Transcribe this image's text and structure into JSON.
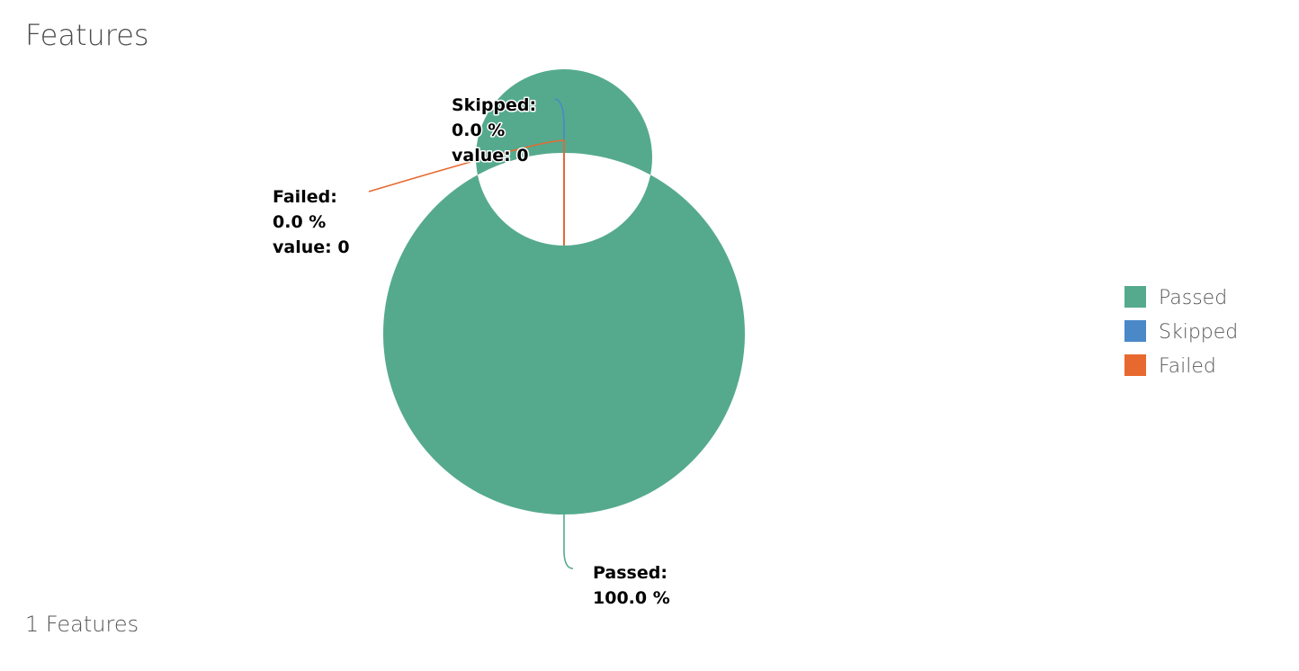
{
  "panel": {
    "title": "Features",
    "summary": "1 Features"
  },
  "chart_data": {
    "type": "pie",
    "donut": true,
    "legend_position": "right",
    "series": [
      {
        "name": "Passed",
        "value": 1,
        "percent": 100.0,
        "color": "#55aa8e",
        "label_lines": [
          "Passed:",
          "100.0 %"
        ]
      },
      {
        "name": "Skipped",
        "value": 0,
        "percent": 0.0,
        "color": "#4a88c8",
        "label_lines": [
          "Skipped:",
          "0.0 %",
          "value: 0"
        ]
      },
      {
        "name": "Failed",
        "value": 0,
        "percent": 0.0,
        "color": "#e8692f",
        "label_lines": [
          "Failed:",
          "0.0 %",
          "value: 0"
        ]
      }
    ]
  }
}
